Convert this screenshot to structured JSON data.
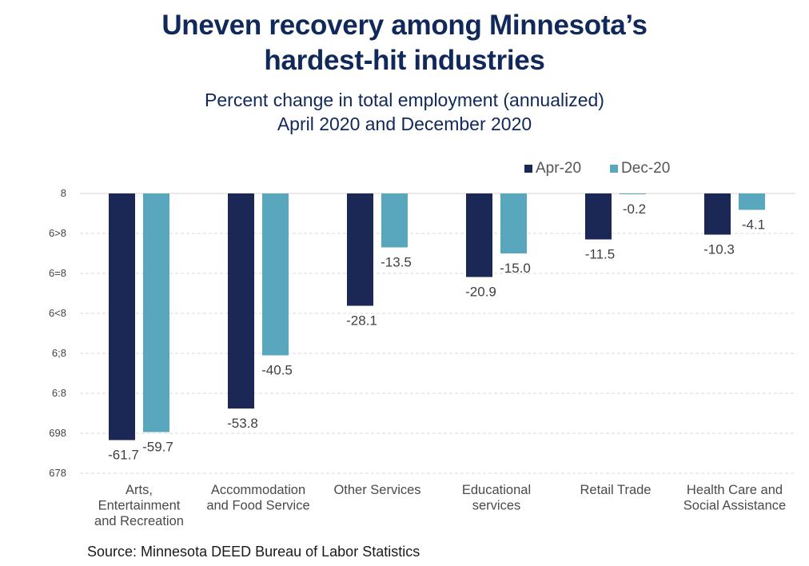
{
  "title_lines": [
    "Uneven recovery among Minnesota’s",
    "hardest-hit industries"
  ],
  "subtitle_lines": [
    "Percent change in total employment (annualized)",
    "April 2020 and December 2020"
  ],
  "source": "Source: Minnesota DEED Bureau of Labor Statistics",
  "colors": {
    "title": "#10295a",
    "apr": "#1b2754",
    "dec": "#58a7bd",
    "grid": "#d0d0d0"
  },
  "chart_data": {
    "type": "bar",
    "title": "Uneven recovery among Minnesota’s hardest-hit industries",
    "subtitle": "Percent change in total employment (annualized) April 2020 and December 2020",
    "xlabel": "",
    "ylabel": "",
    "ylim": [
      -70,
      0
    ],
    "y_ticks": [
      0,
      -10,
      -20,
      -30,
      -40,
      -50,
      -60,
      -70
    ],
    "y_tick_labels": [
      "8",
      "6>8",
      "6=8",
      "6<8",
      "6;8",
      "6:8",
      "698",
      "678"
    ],
    "grid": true,
    "legend_position": "top-right",
    "categories": [
      [
        "Arts,",
        "Entertainment",
        "and Recreation"
      ],
      [
        "Accommodation",
        "and Food Service"
      ],
      [
        "Other Services"
      ],
      [
        "Educational",
        "services"
      ],
      [
        "Retail Trade"
      ],
      [
        "Health Care and",
        "Social Assistance"
      ]
    ],
    "series": [
      {
        "name": "Apr-20",
        "color": "#1b2754",
        "values": [
          -61.7,
          -53.8,
          -28.1,
          -20.9,
          -11.5,
          -10.3
        ]
      },
      {
        "name": "Dec-20",
        "color": "#58a7bd",
        "values": [
          -59.7,
          -40.5,
          -13.5,
          -15.0,
          -0.2,
          -4.1
        ]
      }
    ]
  }
}
